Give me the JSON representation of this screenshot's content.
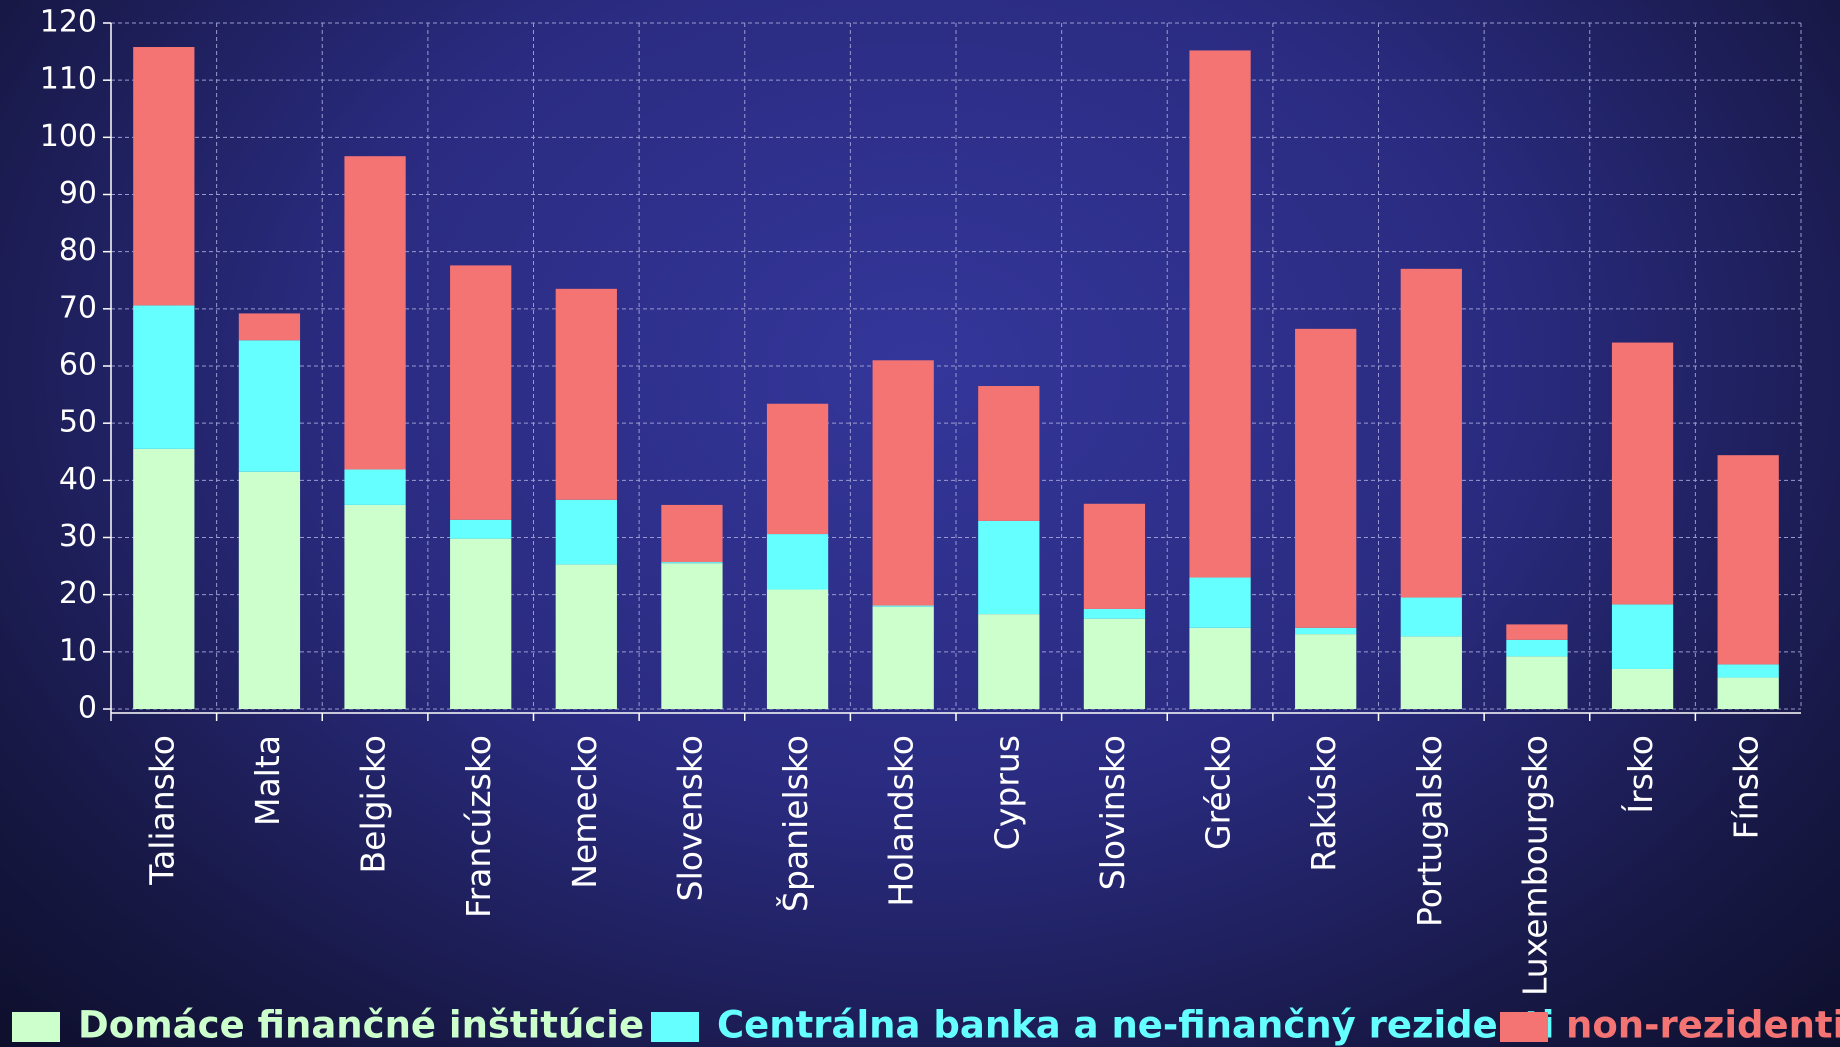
{
  "chart_data": {
    "type": "stacked_bar",
    "categories": [
      "Taliansko",
      "Malta",
      "Belgicko",
      "Francúzsko",
      "Nemecko",
      "Slovensko",
      "Španielsko",
      "Holandsko",
      "Cyprus",
      "Slovinsko",
      "Grécko",
      "Rakúsko",
      "Portugalsko",
      "Luxembourgsko",
      "Írsko",
      "Fínsko"
    ],
    "series": [
      {
        "name": "Domáce finančné inštitúcie",
        "color": "#ccffcc",
        "values": [
          45.5,
          41.5,
          35.7,
          29.8,
          25.3,
          25.5,
          20.9,
          17.9,
          16.6,
          15.8,
          14.2,
          13.1,
          12.7,
          9.2,
          7.0,
          5.5
        ]
      },
      {
        "name": "Centrálna banka a ne-finančný rezidenti",
        "color": "#66ffff",
        "values": [
          25.1,
          23.0,
          6.2,
          3.3,
          11.3,
          0.2,
          9.7,
          0.2,
          16.3,
          1.7,
          8.8,
          1.1,
          6.8,
          2.9,
          11.3,
          2.3
        ]
      },
      {
        "name": "non-rezidenti",
        "color": "#f47373",
        "values": [
          45.2,
          4.7,
          54.8,
          44.5,
          36.9,
          10.0,
          22.8,
          42.9,
          23.6,
          18.4,
          92.2,
          52.3,
          57.5,
          2.7,
          45.8,
          36.6
        ]
      }
    ],
    "ylim": [
      0,
      120
    ],
    "yticks": [
      0,
      10,
      20,
      30,
      40,
      50,
      60,
      70,
      80,
      90,
      100,
      110,
      120
    ],
    "grid": true
  }
}
